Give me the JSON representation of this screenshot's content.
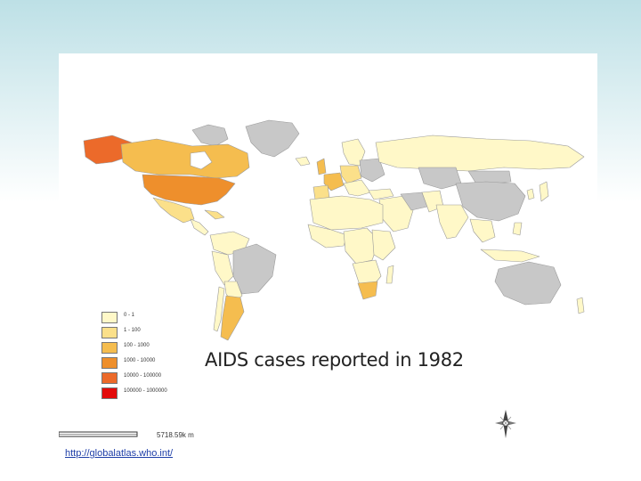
{
  "map": {
    "title": "AIDS cases reported in 1982",
    "legend": [
      {
        "label": "0 - 1",
        "color": "#fff8c8"
      },
      {
        "label": "1 - 100",
        "color": "#fbe08a"
      },
      {
        "label": "100 - 1000",
        "color": "#f5bd4f"
      },
      {
        "label": "1000 - 10000",
        "color": "#ee8f2c"
      },
      {
        "label": "10000 - 100000",
        "color": "#ec6a2a"
      },
      {
        "label": "100000 - 1000000",
        "color": "#e30b0b"
      }
    ],
    "no_data_color": "#c8c8c8",
    "scale": {
      "zero": "0",
      "label": "5718.59k m"
    },
    "compass": "compass-rose-icon"
  },
  "footer": {
    "source_link": "http://globalatlas.who.int/"
  }
}
